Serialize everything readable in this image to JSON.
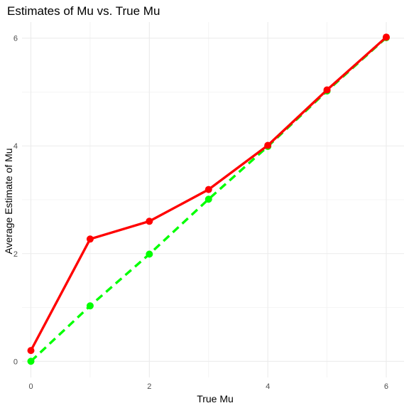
{
  "chart_data": {
    "type": "line",
    "title": "Estimates of Mu vs. True Mu",
    "xlabel": "True Mu",
    "ylabel": "Average Estimate of Mu",
    "xlim": [
      -0.15,
      6.3
    ],
    "ylim": [
      -0.3,
      6.3
    ],
    "x_ticks": [
      0,
      2,
      4,
      6
    ],
    "y_ticks": [
      0,
      2,
      4,
      6
    ],
    "x_minor_ticks": [
      1,
      3,
      5
    ],
    "y_minor_ticks": [
      1,
      3,
      5
    ],
    "grid": true,
    "legend": "none",
    "x": [
      0,
      1,
      2,
      3,
      4,
      5,
      6
    ],
    "series": [
      {
        "color": "#00ff00",
        "line_style": "dashed",
        "values": [
          0,
          1.03,
          1.99,
          3.01,
          3.99,
          5.02,
          6.01
        ]
      },
      {
        "color": "#ff0000",
        "line_style": "solid",
        "values": [
          0.2,
          2.27,
          2.6,
          3.19,
          4.01,
          5.04,
          6.02
        ]
      }
    ]
  }
}
